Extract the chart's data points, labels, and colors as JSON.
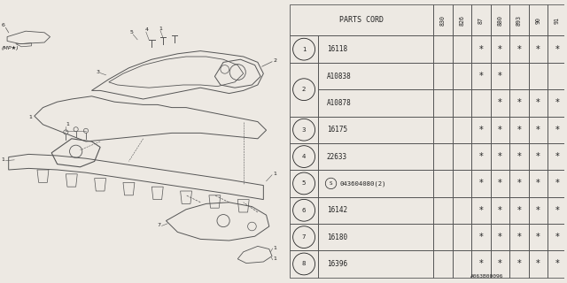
{
  "bg_color": "#ede9e3",
  "line_color": "#555555",
  "text_color": "#222222",
  "header_cols": [
    "PARTS CORD",
    "830",
    "826",
    "87",
    "880",
    "893",
    "90",
    "91"
  ],
  "footer_code": "A063B00096",
  "row_data": [
    {
      "num": "1",
      "part": "16118",
      "span": 1,
      "marks": [
        false,
        false,
        true,
        true,
        true,
        true,
        true
      ]
    },
    {
      "num": "2",
      "part": "A10838",
      "span": 2,
      "marks": [
        false,
        false,
        true,
        true,
        false,
        false,
        false
      ]
    },
    {
      "num": "2",
      "part": "A10878",
      "span": 0,
      "marks": [
        false,
        false,
        false,
        true,
        true,
        true,
        true
      ]
    },
    {
      "num": "3",
      "part": "16175",
      "span": 1,
      "marks": [
        false,
        false,
        true,
        true,
        true,
        true,
        true
      ]
    },
    {
      "num": "4",
      "part": "22633",
      "span": 1,
      "marks": [
        false,
        false,
        true,
        true,
        true,
        true,
        true
      ]
    },
    {
      "num": "5",
      "part": "S043604080(2)",
      "span": 1,
      "marks": [
        false,
        false,
        true,
        true,
        true,
        true,
        true
      ]
    },
    {
      "num": "6",
      "part": "16142",
      "span": 1,
      "marks": [
        false,
        false,
        true,
        true,
        true,
        true,
        true
      ]
    },
    {
      "num": "7",
      "part": "16180",
      "span": 1,
      "marks": [
        false,
        false,
        true,
        true,
        true,
        true,
        true
      ]
    },
    {
      "num": "8",
      "part": "16396",
      "span": 1,
      "marks": [
        false,
        false,
        true,
        true,
        true,
        true,
        true
      ]
    }
  ]
}
